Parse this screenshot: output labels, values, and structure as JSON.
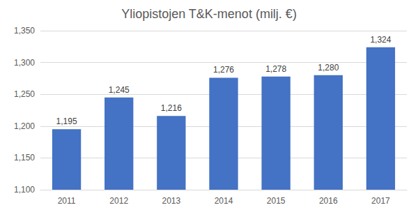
{
  "chart_data": {
    "type": "bar",
    "title": "Yliopistojen T&K-menot (milj. €)",
    "categories": [
      "2011",
      "2012",
      "2013",
      "2014",
      "2015",
      "2016",
      "2017"
    ],
    "values": [
      1195,
      1245,
      1216,
      1276,
      1278,
      1280,
      1324
    ],
    "value_labels": [
      "1,195",
      "1,245",
      "1,216",
      "1,276",
      "1,278",
      "1,280",
      "1,324"
    ],
    "color": "#4472c4",
    "ylim": [
      1100,
      1350
    ],
    "yticks": [
      {
        "value": 1100,
        "label": "1,100"
      },
      {
        "value": 1150,
        "label": "1,150"
      },
      {
        "value": 1200,
        "label": "1,200"
      },
      {
        "value": 1250,
        "label": "1,250"
      },
      {
        "value": 1300,
        "label": "1,300"
      },
      {
        "value": 1350,
        "label": "1,350"
      }
    ],
    "grid": true,
    "data_labels": true
  }
}
